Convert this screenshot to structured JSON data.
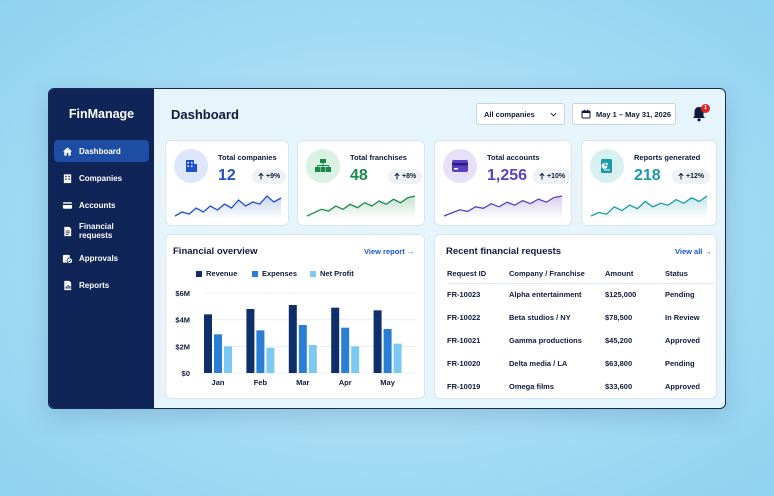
{
  "app": {
    "brand": "FinManage",
    "page_title": "Dashboard"
  },
  "sidebar": {
    "items": [
      {
        "label": "Dashboard",
        "icon": "home-icon",
        "active": true
      },
      {
        "label": "Companies",
        "icon": "building-icon",
        "active": false
      },
      {
        "label": "Accounts",
        "icon": "card-icon",
        "active": false
      },
      {
        "label": "Financial requests",
        "icon": "document-icon",
        "active": false
      },
      {
        "label": "Approvals",
        "icon": "approval-icon",
        "active": false
      },
      {
        "label": "Reports",
        "icon": "report-icon",
        "active": false
      }
    ]
  },
  "header": {
    "company_select": "All companies",
    "date_range": "May 1 – May 31, 2026",
    "notification_count": "1"
  },
  "stats": [
    {
      "label": "Total companies",
      "value": "12",
      "change": "+9%",
      "color": "#1f4fc9",
      "icon": "building-icon",
      "spark": [
        4,
        6,
        5,
        8,
        6,
        9,
        7,
        10,
        8,
        12,
        9,
        11,
        10,
        14,
        11,
        13
      ]
    },
    {
      "label": "Total franchises",
      "value": "48",
      "change": "+8%",
      "color": "#1a8a4a",
      "icon": "franchise-icon",
      "spark": [
        3,
        5,
        7,
        6,
        9,
        7,
        10,
        8,
        11,
        9,
        12,
        10,
        13,
        11,
        14,
        15
      ]
    },
    {
      "label": "Total accounts",
      "value": "1,256",
      "change": "+10%",
      "color": "#5b3fc4",
      "icon": "credit-card-icon",
      "spark": [
        3,
        5,
        7,
        6,
        9,
        8,
        11,
        9,
        12,
        10,
        13,
        11,
        14,
        12,
        15,
        16
      ]
    },
    {
      "label": "Reports generated",
      "value": "218",
      "change": "+12%",
      "color": "#1a9aa6",
      "icon": "report-chart-icon",
      "spark": [
        4,
        6,
        5,
        9,
        7,
        10,
        8,
        12,
        9,
        11,
        10,
        13,
        11,
        14,
        12,
        15
      ]
    }
  ],
  "overview": {
    "title": "Financial overview",
    "link": "View report",
    "chart_data": {
      "type": "bar",
      "categories": [
        "Jan",
        "Feb",
        "Mar",
        "Apr",
        "May"
      ],
      "series": [
        {
          "name": "Revenue",
          "values": [
            4.4,
            4.8,
            5.1,
            4.9,
            4.7
          ],
          "color": "#0f2f6b"
        },
        {
          "name": "Expenses",
          "values": [
            2.9,
            3.2,
            3.6,
            3.4,
            3.3
          ],
          "color": "#2a7fd4"
        },
        {
          "name": "Net Profit",
          "values": [
            2.0,
            1.9,
            2.1,
            2.0,
            2.2
          ],
          "color": "#7cc9f2"
        }
      ],
      "yticks": [
        "$6M",
        "$4M",
        "$2M",
        "$0"
      ],
      "ylim": [
        0,
        6
      ]
    }
  },
  "requests": {
    "title": "Recent financial requests",
    "link": "View all",
    "columns": [
      "Request ID",
      "Company / Franchise",
      "Amount",
      "Status"
    ],
    "rows": [
      [
        "FR-10023",
        "Alpha entertainment",
        "$125,000",
        "Pending"
      ],
      [
        "FR-10022",
        "Beta studios / NY",
        "$78,500",
        "In Review"
      ],
      [
        "FR-10021",
        "Gamma productions",
        "$45,200",
        "Approved"
      ],
      [
        "FR-10020",
        "Delta media / LA",
        "$63,800",
        "Pending"
      ],
      [
        "FR-10019",
        "Omega films",
        "$33,600",
        "Approved"
      ]
    ]
  }
}
